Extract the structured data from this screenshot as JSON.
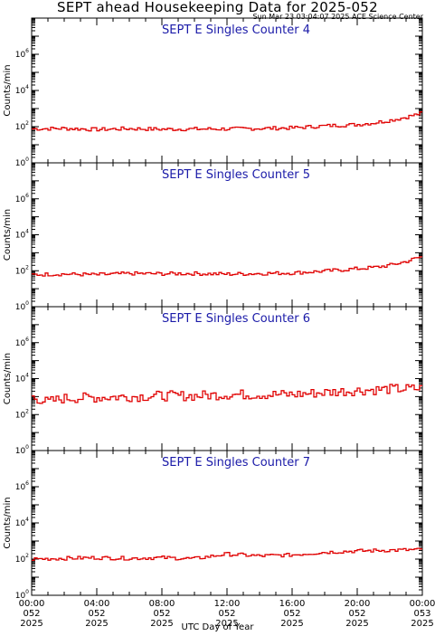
{
  "header": {
    "title": "SEPT ahead Housekeeping Data for 2025-052",
    "stamp": "Sun Mar 23 03:04:07 2025 ACE Science Center",
    "xaxis_title": "UTC Day of Year"
  },
  "colors": {
    "series": "#e00000",
    "panel_title": "#1a1aa8"
  },
  "chart_data": [
    {
      "type": "line",
      "title": "SEPT E Singles Counter 4",
      "ylabel": "Counts/min",
      "yscale": "log",
      "ylim": [
        1,
        100000000
      ],
      "yticks": [
        {
          "base": "10",
          "exp": "0"
        },
        {
          "base": "10",
          "exp": "2"
        },
        {
          "base": "10",
          "exp": "4"
        },
        {
          "base": "10",
          "exp": "6"
        }
      ],
      "xlim": [
        0,
        24
      ],
      "x_hours": [
        0,
        2,
        4,
        6,
        8,
        10,
        12,
        14,
        16,
        18,
        19,
        20,
        21,
        22,
        23,
        24
      ],
      "values": [
        75,
        80,
        70,
        78,
        72,
        74,
        75,
        80,
        85,
        110,
        120,
        130,
        160,
        220,
        330,
        560
      ]
    },
    {
      "type": "line",
      "title": "SEPT E Singles Counter 5",
      "ylabel": "Counts/min",
      "yscale": "log",
      "ylim": [
        1,
        100000000
      ],
      "yticks": [
        {
          "base": "10",
          "exp": "0"
        },
        {
          "base": "10",
          "exp": "2"
        },
        {
          "base": "10",
          "exp": "4"
        },
        {
          "base": "10",
          "exp": "6"
        }
      ],
      "xlim": [
        0,
        24
      ],
      "x_hours": [
        0,
        2,
        4,
        6,
        8,
        10,
        12,
        14,
        16,
        18,
        19,
        20,
        21,
        22,
        23,
        24
      ],
      "values": [
        60,
        65,
        60,
        70,
        68,
        70,
        65,
        70,
        75,
        95,
        110,
        130,
        150,
        200,
        320,
        620
      ]
    },
    {
      "type": "line",
      "title": "SEPT E Singles Counter 6",
      "ylabel": "Counts/min",
      "yscale": "log",
      "ylim": [
        1,
        100000000
      ],
      "yticks": [
        {
          "base": "10",
          "exp": "0"
        },
        {
          "base": "10",
          "exp": "2"
        },
        {
          "base": "10",
          "exp": "4"
        },
        {
          "base": "10",
          "exp": "6"
        }
      ],
      "xlim": [
        0,
        24
      ],
      "x_hours": [
        0,
        0.5,
        1,
        2,
        4,
        6,
        8,
        10,
        12,
        14,
        16,
        18,
        20,
        22,
        24
      ],
      "values": [
        1000,
        700,
        500,
        800,
        900,
        1000,
        1100,
        1100,
        1300,
        1300,
        1300,
        1700,
        2200,
        2600,
        2800
      ]
    },
    {
      "type": "line",
      "title": "SEPT E Singles Counter 7",
      "ylabel": "Counts/min",
      "yscale": "log",
      "ylim": [
        1,
        100000000
      ],
      "yticks": [
        {
          "base": "10",
          "exp": "0"
        },
        {
          "base": "10",
          "exp": "2"
        },
        {
          "base": "10",
          "exp": "4"
        },
        {
          "base": "10",
          "exp": "6"
        }
      ],
      "xlim": [
        0,
        24
      ],
      "x_hours": [
        0,
        2,
        4,
        6,
        8,
        10,
        12,
        14,
        16,
        18,
        20,
        22,
        24
      ],
      "values": [
        100,
        110,
        120,
        110,
        120,
        105,
        190,
        150,
        170,
        240,
        280,
        310,
        330
      ]
    }
  ],
  "xaxis": {
    "ticks": [
      {
        "hour": 0,
        "time": "00:00",
        "doy": "052",
        "year": "2025"
      },
      {
        "hour": 4,
        "time": "04:00",
        "doy": "052",
        "year": "2025"
      },
      {
        "hour": 8,
        "time": "08:00",
        "doy": "052",
        "year": "2025"
      },
      {
        "hour": 12,
        "time": "12:00",
        "doy": "052",
        "year": "2025"
      },
      {
        "hour": 16,
        "time": "16:00",
        "doy": "052",
        "year": "2025"
      },
      {
        "hour": 20,
        "time": "20:00",
        "doy": "052",
        "year": "2025"
      },
      {
        "hour": 24,
        "time": "00:00",
        "doy": "053",
        "year": "2025"
      }
    ]
  }
}
